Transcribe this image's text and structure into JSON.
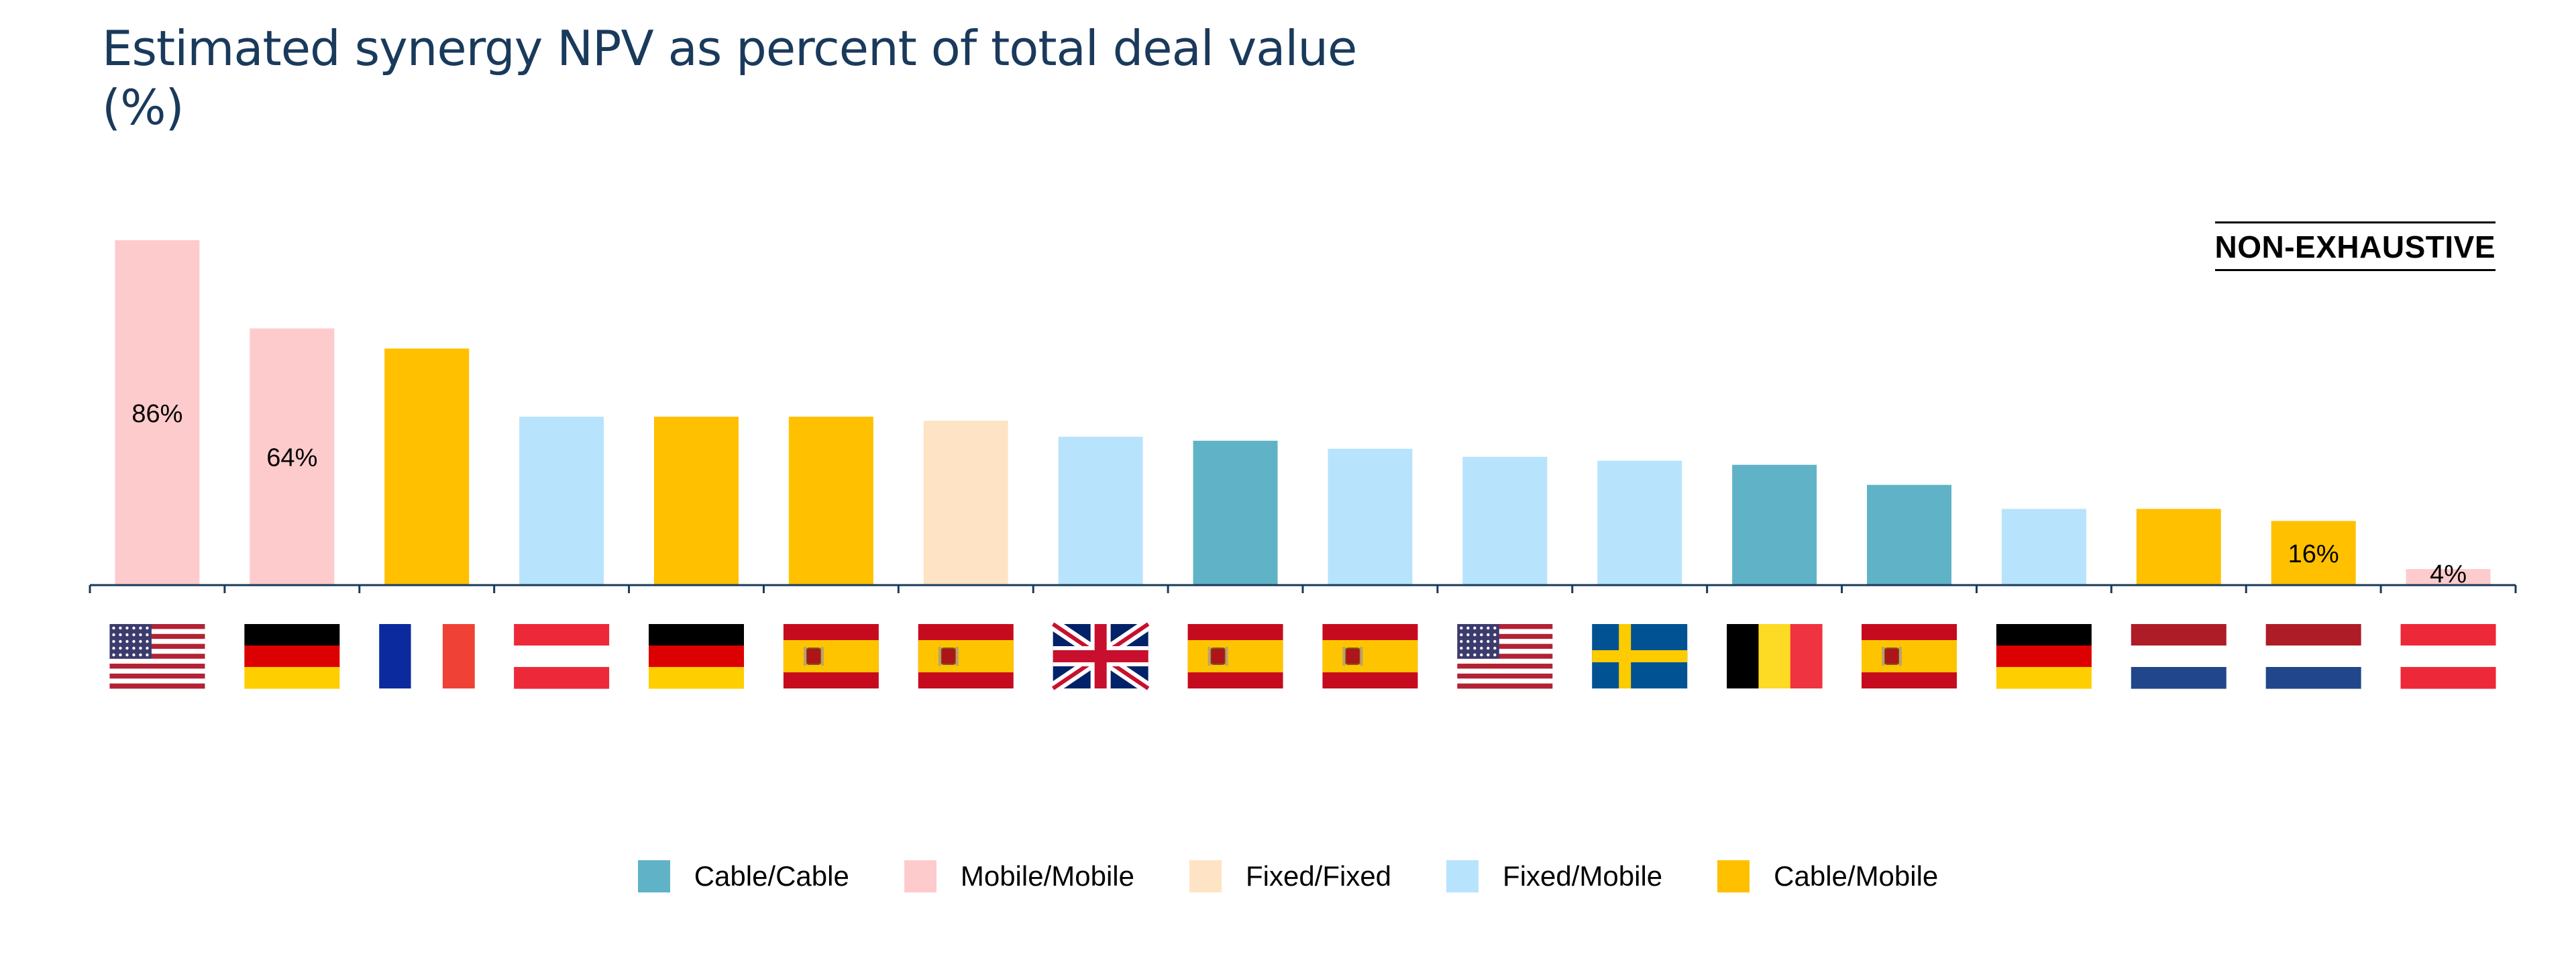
{
  "title_lines": [
    "Estimated synergy NPV as percent of total deal value",
    "(%)"
  ],
  "badge": "NON-EXHAUSTIVE",
  "colors": {
    "Cable/Cable": "#60b3c6",
    "Mobile/Mobile": "#fecbcc",
    "Fixed/Fixed": "#fee4c4",
    "Fixed/Mobile": "#b8e3fc",
    "Cable/Mobile": "#ffc000",
    "axis": "#1a3a5c"
  },
  "legend": [
    "Cable/Cable",
    "Mobile/Mobile",
    "Fixed/Fixed",
    "Fixed/Mobile",
    "Cable/Mobile"
  ],
  "chart_data": {
    "type": "bar",
    "categories": [
      "United States",
      "Germany",
      "France",
      "Austria",
      "Germany",
      "Spain",
      "Spain",
      "United Kingdom",
      "Spain",
      "Spain",
      "United States",
      "Sweden",
      "Belgium",
      "Spain",
      "Germany",
      "Netherlands",
      "Netherlands",
      "Austria"
    ],
    "flag_icons": [
      "flag-us-icon",
      "flag-de-icon",
      "flag-fr-icon",
      "flag-at-icon",
      "flag-de-icon",
      "flag-es-icon",
      "flag-es-icon",
      "flag-gb-icon",
      "flag-es-icon",
      "flag-es-icon",
      "flag-us-icon",
      "flag-se-icon",
      "flag-be-icon",
      "flag-es-icon",
      "flag-de-icon",
      "flag-nl-icon",
      "flag-nl-icon",
      "flag-at-icon"
    ],
    "values": [
      86,
      64,
      59,
      42,
      42,
      42,
      41,
      37,
      36,
      34,
      32,
      31,
      30,
      25,
      19,
      19,
      16,
      4
    ],
    "deal_types": [
      "Mobile/Mobile",
      "Mobile/Mobile",
      "Cable/Mobile",
      "Fixed/Mobile",
      "Cable/Mobile",
      "Cable/Mobile",
      "Fixed/Fixed",
      "Fixed/Mobile",
      "Cable/Cable",
      "Fixed/Mobile",
      "Fixed/Mobile",
      "Fixed/Mobile",
      "Cable/Cable",
      "Cable/Cable",
      "Fixed/Mobile",
      "Cable/Mobile",
      "Cable/Mobile",
      "Mobile/Mobile"
    ],
    "data_labels": [
      "86%",
      "64%",
      "",
      "",
      "",
      "",
      "",
      "",
      "",
      "",
      "",
      "",
      "",
      "",
      "",
      "",
      "16%",
      "4%"
    ],
    "ylim": [
      0,
      86
    ],
    "grid": false
  }
}
